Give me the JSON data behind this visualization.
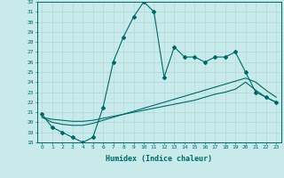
{
  "xlabel": "Humidex (Indice chaleur)",
  "bg_color": "#c8eaea",
  "line_color": "#006868",
  "grid_color": "#b0d8d8",
  "xlim": [
    -0.5,
    23.5
  ],
  "ylim": [
    18,
    32
  ],
  "yticks": [
    18,
    19,
    20,
    21,
    22,
    23,
    24,
    25,
    26,
    27,
    28,
    29,
    30,
    31,
    32
  ],
  "xticks": [
    0,
    1,
    2,
    3,
    4,
    5,
    6,
    7,
    8,
    9,
    10,
    11,
    12,
    13,
    14,
    15,
    16,
    17,
    18,
    19,
    20,
    21,
    22,
    23
  ],
  "line1_x": [
    0,
    1,
    2,
    3,
    4,
    5,
    6,
    7,
    8,
    9,
    10,
    11,
    12,
    13,
    14,
    15,
    16,
    17,
    18,
    19,
    20,
    21,
    22,
    23
  ],
  "line1_y": [
    20.8,
    19.5,
    19.0,
    18.5,
    18.0,
    18.5,
    21.5,
    26.0,
    28.5,
    30.5,
    32.0,
    31.0,
    24.5,
    27.5,
    26.5,
    26.5,
    26.0,
    26.5,
    26.5,
    27.0,
    25.0,
    23.0,
    22.5,
    22.0
  ],
  "line2_x": [
    0,
    1,
    2,
    3,
    4,
    5,
    6,
    7,
    8,
    9,
    10,
    11,
    12,
    13,
    14,
    15,
    16,
    17,
    18,
    19,
    20,
    21,
    22,
    23
  ],
  "line2_y": [
    20.5,
    20.3,
    20.2,
    20.1,
    20.1,
    20.2,
    20.4,
    20.6,
    20.8,
    21.0,
    21.2,
    21.4,
    21.6,
    21.8,
    22.0,
    22.2,
    22.5,
    22.8,
    23.0,
    23.3,
    24.0,
    23.2,
    22.5,
    22.0
  ],
  "line3_x": [
    0,
    1,
    2,
    3,
    4,
    5,
    6,
    7,
    8,
    9,
    10,
    11,
    12,
    13,
    14,
    15,
    16,
    17,
    18,
    19,
    20,
    21,
    22,
    23
  ],
  "line3_y": [
    20.5,
    20.0,
    19.8,
    19.7,
    19.7,
    19.9,
    20.2,
    20.5,
    20.8,
    21.1,
    21.4,
    21.7,
    22.0,
    22.3,
    22.6,
    22.9,
    23.2,
    23.5,
    23.8,
    24.1,
    24.4,
    24.0,
    23.2,
    22.5
  ]
}
